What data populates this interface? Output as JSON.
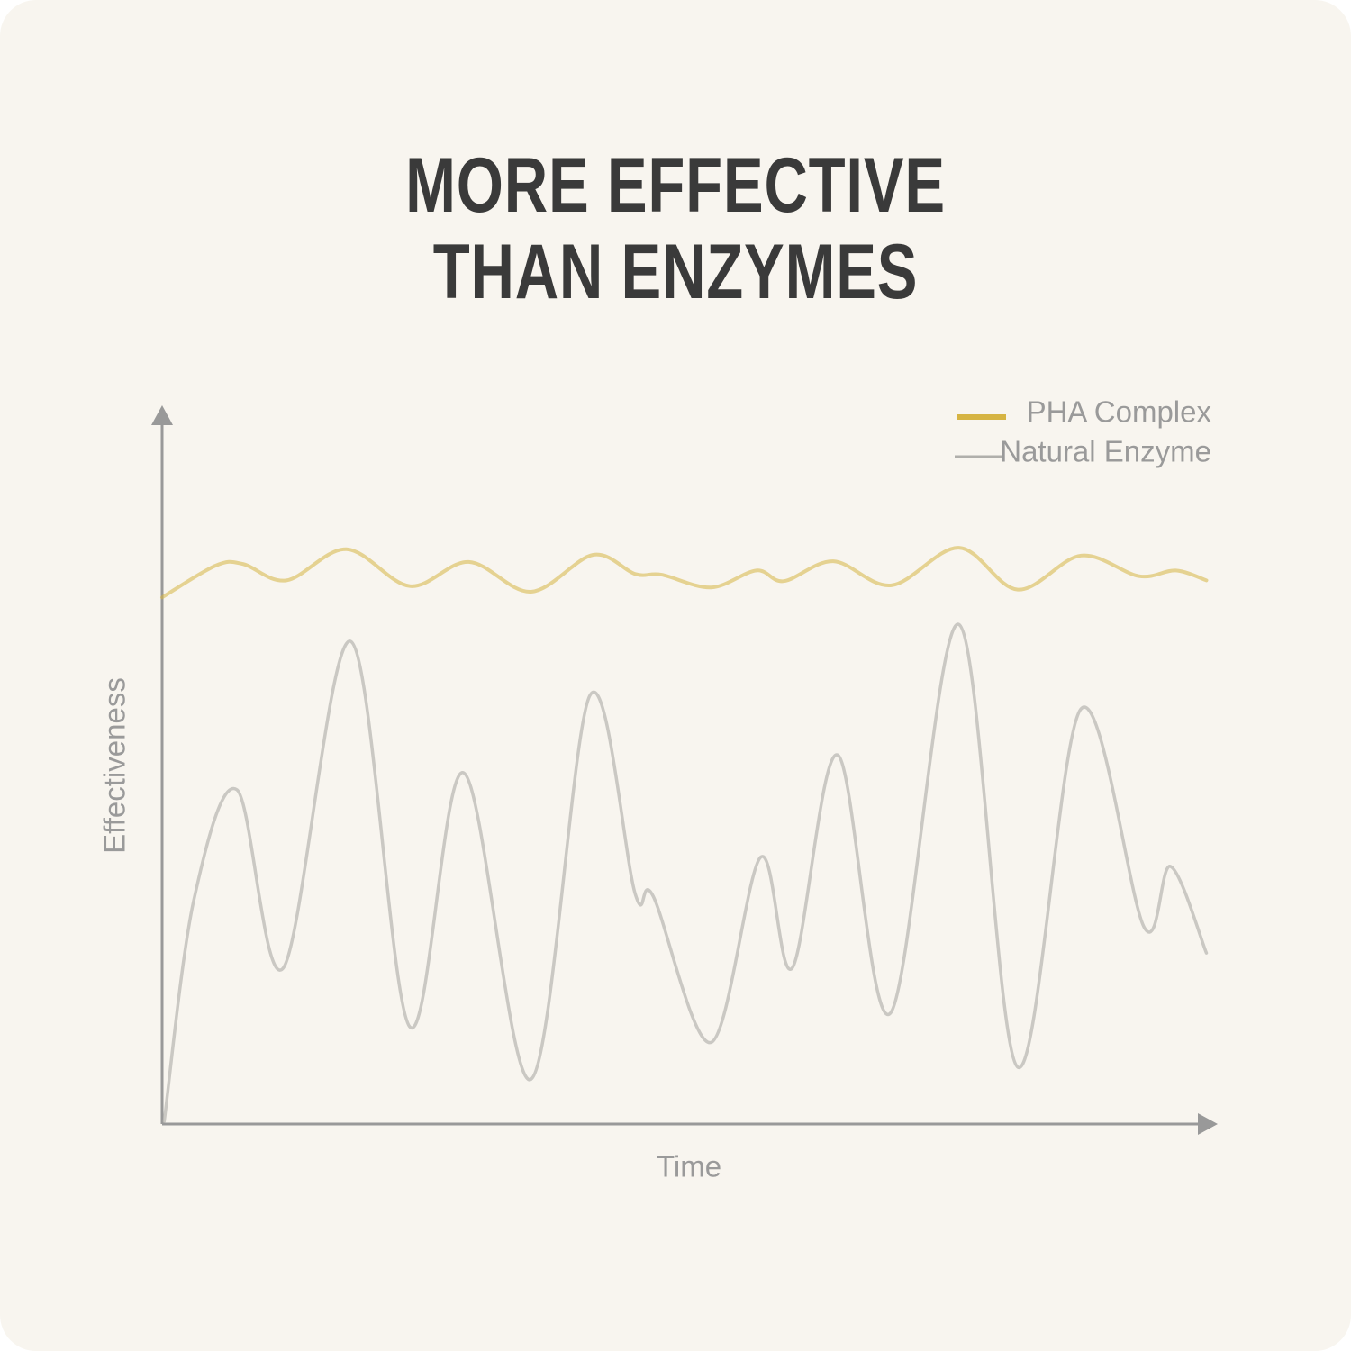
{
  "chart_data": {
    "type": "line",
    "title": "MORE EFFECTIVE THAN ENZYMES",
    "x_label": "Time",
    "y_label": "Effectiveness",
    "xlim": [
      0,
      100
    ],
    "ylim": [
      0,
      100
    ],
    "series": [
      {
        "name": "PHA Complex",
        "color": "#d6b443",
        "x": [
          0,
          5.1,
          7.7,
          11.8,
          17.5,
          23.5,
          29.1,
          35.0,
          40.9,
          44.9,
          47.4,
          52.1,
          56.4,
          59.0,
          63.7,
          69.2,
          75.6,
          81.2,
          87.2,
          92.7,
          96.2,
          99.1
        ],
        "values": [
          74.2,
          78.7,
          78.9,
          76.6,
          81.0,
          75.8,
          79.2,
          75.0,
          80.2,
          77.5,
          77.4,
          75.6,
          78.0,
          76.5,
          79.3,
          75.9,
          81.2,
          75.3,
          80.1,
          77.2,
          78.0,
          76.6
        ]
      },
      {
        "name": "Natural Enzyme",
        "color": "#b0afab",
        "x": [
          0.2,
          3.0,
          7.1,
          11.5,
          17.9,
          23.5,
          28.6,
          35.0,
          40.6,
          44.9,
          46.6,
          52.1,
          56.8,
          59.8,
          64.1,
          69.1,
          75.6,
          81.2,
          87.2,
          93.2,
          95.7,
          99.1
        ],
        "values": [
          0.4,
          31.5,
          47.1,
          22.0,
          68.0,
          13.7,
          49.5,
          6.3,
          60.4,
          32.4,
          32.1,
          11.5,
          37.6,
          22.0,
          52.0,
          15.6,
          70.4,
          8.0,
          58.5,
          27.7,
          36.3,
          24.1
        ]
      }
    ],
    "legend": "top-right"
  }
}
